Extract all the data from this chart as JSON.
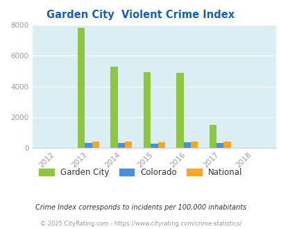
{
  "title": "Garden City  Violent Crime Index",
  "years": [
    2012,
    2013,
    2014,
    2015,
    2016,
    2017,
    2018
  ],
  "garden_city": [
    0,
    7850,
    5280,
    4950,
    4880,
    1500,
    0
  ],
  "colorado": [
    0,
    300,
    295,
    285,
    340,
    320,
    0
  ],
  "national": [
    0,
    385,
    400,
    375,
    415,
    405,
    0
  ],
  "bar_width": 0.22,
  "color_garden": "#8dc63f",
  "color_colorado": "#4a90d9",
  "color_national": "#f5a623",
  "color_bg": "#daeef3",
  "color_bg_outer": "#ffffff",
  "ylim": [
    0,
    8000
  ],
  "yticks": [
    0,
    2000,
    4000,
    6000,
    8000
  ],
  "title_color": "#1a5faa",
  "title_fontsize": 10.5,
  "legend_labels": [
    "Garden City",
    "Colorado",
    "National"
  ],
  "note": "Crime Index corresponds to incidents per 100,000 inhabitants",
  "footer": "© 2025 CityRating.com - https://www.cityrating.com/crime-statistics/",
  "note_color": "#333333",
  "footer_color": "#999999",
  "tick_color": "#999999",
  "grid_color": "#ffffff"
}
